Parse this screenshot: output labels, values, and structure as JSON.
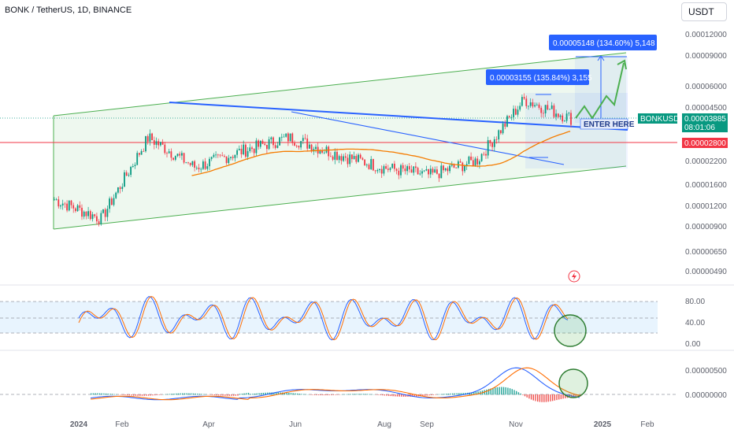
{
  "header": {
    "symbol_title": "BONK / TetherUS, 1D, BINANCE",
    "currency": "USDT"
  },
  "chart_data": {
    "type": "candlestick",
    "symbol": "BONK / TetherUS",
    "interval": "1D",
    "exchange": "BINANCE",
    "x_tick_labels": [
      "2024",
      "Feb",
      "Apr",
      "Jun",
      "Aug",
      "Sep",
      "Nov",
      "2025",
      "Feb"
    ],
    "price_axis_labels": [
      "0.00012000",
      "0.00009000",
      "0.00006000",
      "0.00004500",
      "0.00003000",
      "0.00002200",
      "0.00001600",
      "0.00001200",
      "0.00000900",
      "0.00000650",
      "0.00000490"
    ],
    "price_axis_scale": "log",
    "price_series": [
      {
        "month": "Jan 2024",
        "price": 1.3e-05
      },
      {
        "month": "Feb 2024",
        "price": 1e-05
      },
      {
        "month": "Mar 2024",
        "price": 3e-05
      },
      {
        "month": "Apr 2024",
        "price": 2e-05
      },
      {
        "month": "May 2024",
        "price": 2.5e-05
      },
      {
        "month": "Jun 2024",
        "price": 3e-05
      },
      {
        "month": "Jul 2024",
        "price": 2.4e-05
      },
      {
        "month": "Aug 2024",
        "price": 2e-05
      },
      {
        "month": "Sep 2024",
        "price": 1.8e-05
      },
      {
        "month": "Oct 2024",
        "price": 2.2e-05
      },
      {
        "month": "Nov 2024",
        "price": 5e-05
      },
      {
        "month": "Dec 2024",
        "price": 3.88e-05
      }
    ],
    "current_price": {
      "symbol": "BONKUSDT",
      "price": "0.00003885",
      "countdown": "08:01:06",
      "color": "#089981"
    },
    "horizontal_level": {
      "price": "0.00002800",
      "color": "#f23645"
    },
    "annotations": {
      "callout_small": "0.00003155 (135.84%) 3,155",
      "callout_large": "0.00005148 (134.60%) 5,148",
      "enter_here": "ENTER HERE"
    },
    "channel_color": "#4caf50",
    "trendline_color": "#2962ff",
    "moving_average_color": "#f57c00",
    "stoch_rsi": {
      "levels": [
        "80.00",
        "40.00",
        "0.00"
      ],
      "k_color": "#2962ff",
      "d_color": "#ff6d00"
    },
    "macd": {
      "levels": [
        "0.00000500",
        "0.00000000"
      ],
      "macd_color": "#2962ff",
      "signal_color": "#ff6d00"
    }
  }
}
